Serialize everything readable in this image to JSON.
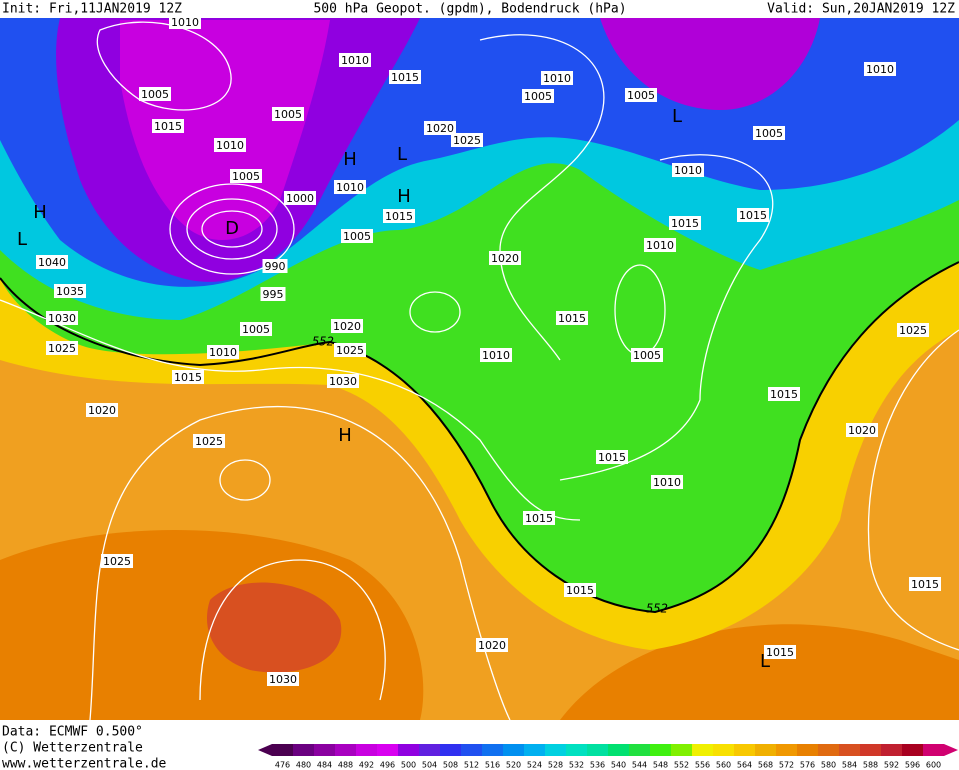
{
  "header": {
    "init": "Init: Fri,11JAN2019 12Z",
    "title": "500 hPa Geopot. (gpdm), Bodendruck (hPa)",
    "valid": "Valid: Sun,20JAN2019 12Z"
  },
  "isobar_labels": [
    "1010",
    "1010",
    "1015",
    "1010",
    "1010",
    "1005",
    "1005",
    "1005",
    "1005",
    "1015",
    "1020",
    "1025",
    "1005",
    "1010",
    "1010",
    "1005",
    "1010",
    "1000",
    "1015",
    "1015",
    "1015",
    "1005",
    "1010",
    "1040",
    "1020",
    "990",
    "1035",
    "995",
    "1030",
    "1015",
    "1005",
    "1020",
    "1025",
    "1010",
    "1025",
    "1005",
    "1010",
    "1015",
    "1030",
    "1025",
    "1020",
    "1015",
    "1025",
    "1020",
    "1015",
    "1010",
    "1015",
    "1025",
    "1015",
    "1015",
    "1020",
    "1015",
    "1030"
  ],
  "contour_552_labels": [
    "552",
    "552"
  ],
  "pressure_centers": [
    "H",
    "L",
    "H",
    "L",
    "H",
    "D",
    "H",
    "L",
    "L"
  ],
  "footer": {
    "data": "Data: ECMWF  0.500°",
    "copyright": "(C) Wetterzentrale",
    "url": "www.wetterzentrale.de"
  },
  "colorbar": {
    "ticks": [
      476,
      480,
      484,
      488,
      492,
      496,
      500,
      504,
      508,
      512,
      516,
      520,
      524,
      528,
      532,
      536,
      540,
      544,
      548,
      552,
      556,
      560,
      564,
      568,
      572,
      576,
      580,
      584,
      588,
      592,
      596,
      600
    ],
    "colors": [
      "#4b0050",
      "#6a0080",
      "#8a00a0",
      "#a800c0",
      "#c800e0",
      "#d800f0",
      "#9000e0",
      "#6020e0",
      "#3030f0",
      "#2050f0",
      "#1070f0",
      "#0090f0",
      "#00b0f0",
      "#00d0e0",
      "#00e0c0",
      "#00e0a0",
      "#00e070",
      "#20e040",
      "#40f010",
      "#80f000",
      "#f0f000",
      "#f8e000",
      "#f8c800",
      "#f0b000",
      "#f09800",
      "#e88000",
      "#e06a10",
      "#d85020",
      "#d03828",
      "#c02030",
      "#a80020",
      "#d00070"
    ]
  }
}
